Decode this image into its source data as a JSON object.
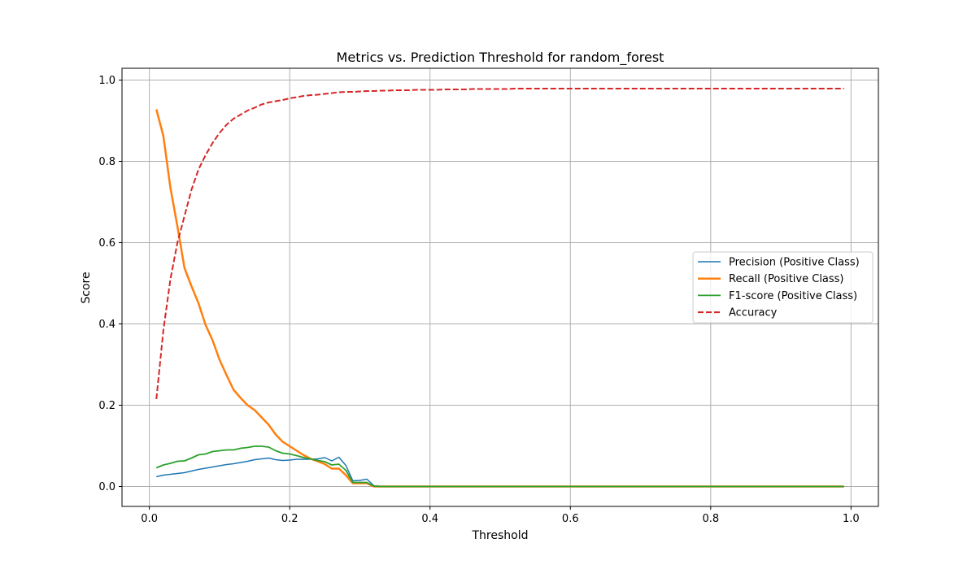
{
  "chart_data": {
    "type": "line",
    "title": "Metrics vs. Prediction Threshold for random_forest",
    "xlabel": "Threshold",
    "ylabel": "Score",
    "xlim": [
      -0.039,
      1.039
    ],
    "ylim": [
      -0.049,
      1.029
    ],
    "xticks": [
      0.0,
      0.2,
      0.4,
      0.6,
      0.8,
      1.0
    ],
    "xtick_labels": [
      "0.0",
      "0.2",
      "0.4",
      "0.6",
      "0.8",
      "1.0"
    ],
    "yticks": [
      0.0,
      0.2,
      0.4,
      0.6,
      0.8,
      1.0
    ],
    "ytick_labels": [
      "0.0",
      "0.2",
      "0.4",
      "0.6",
      "0.8",
      "1.0"
    ],
    "grid": true,
    "legend_position": "center-right",
    "x": [
      0.01,
      0.02,
      0.03,
      0.04,
      0.05,
      0.06,
      0.07,
      0.08,
      0.09,
      0.1,
      0.11,
      0.12,
      0.13,
      0.14,
      0.15,
      0.16,
      0.17,
      0.18,
      0.19,
      0.2,
      0.21,
      0.22,
      0.23,
      0.24,
      0.25,
      0.26,
      0.27,
      0.28,
      0.29,
      0.3,
      0.31,
      0.32,
      0.33,
      0.34,
      0.35,
      0.36,
      0.37,
      0.38,
      0.39,
      0.4,
      0.41,
      0.42,
      0.43,
      0.44,
      0.45,
      0.46,
      0.47,
      0.48,
      0.49,
      0.5,
      0.51,
      0.52,
      0.53,
      0.54,
      0.55,
      0.56,
      0.57,
      0.58,
      0.59,
      0.6,
      0.61,
      0.62,
      0.63,
      0.64,
      0.65,
      0.66,
      0.67,
      0.68,
      0.69,
      0.7,
      0.71,
      0.72,
      0.73,
      0.74,
      0.75,
      0.76,
      0.77,
      0.78,
      0.79,
      0.8,
      0.81,
      0.82,
      0.83,
      0.84,
      0.85,
      0.86,
      0.87,
      0.88,
      0.89,
      0.9,
      0.91,
      0.92,
      0.93,
      0.94,
      0.95,
      0.96,
      0.97,
      0.98,
      0.99
    ],
    "series": [
      {
        "name": "Precision (Positive Class)",
        "color": "#1f77b4",
        "style": "solid",
        "width": 1.5,
        "values": [
          0.024,
          0.028,
          0.03,
          0.032,
          0.034,
          0.038,
          0.042,
          0.045,
          0.048,
          0.051,
          0.054,
          0.056,
          0.059,
          0.062,
          0.066,
          0.068,
          0.07,
          0.066,
          0.064,
          0.065,
          0.067,
          0.067,
          0.067,
          0.068,
          0.071,
          0.063,
          0.072,
          0.052,
          0.014,
          0.015,
          0.018,
          0.002,
          0,
          0,
          0,
          0,
          0,
          0,
          0,
          0,
          0,
          0,
          0,
          0,
          0,
          0,
          0,
          0,
          0,
          0,
          0,
          0,
          0,
          0,
          0,
          0,
          0,
          0,
          0,
          0,
          0,
          0,
          0,
          0,
          0,
          0,
          0,
          0,
          0,
          0,
          0,
          0,
          0,
          0,
          0,
          0,
          0,
          0,
          0,
          0,
          0,
          0,
          0,
          0,
          0,
          0,
          0,
          0,
          0,
          0,
          0,
          0,
          0,
          0,
          0,
          0,
          0,
          0,
          0
        ]
      },
      {
        "name": "Recall (Positive Class)",
        "color": "#ff7f0e",
        "style": "solid",
        "width": 2.5,
        "values": [
          0.928,
          0.862,
          0.735,
          0.64,
          0.538,
          0.493,
          0.451,
          0.398,
          0.36,
          0.312,
          0.274,
          0.238,
          0.218,
          0.2,
          0.188,
          0.17,
          0.152,
          0.128,
          0.11,
          0.099,
          0.088,
          0.077,
          0.068,
          0.062,
          0.055,
          0.044,
          0.044,
          0.028,
          0.008,
          0.008,
          0.008,
          0,
          0,
          0,
          0,
          0,
          0,
          0,
          0,
          0,
          0,
          0,
          0,
          0,
          0,
          0,
          0,
          0,
          0,
          0,
          0,
          0,
          0,
          0,
          0,
          0,
          0,
          0,
          0,
          0,
          0,
          0,
          0,
          0,
          0,
          0,
          0,
          0,
          0,
          0,
          0,
          0,
          0,
          0,
          0,
          0,
          0,
          0,
          0,
          0,
          0,
          0,
          0,
          0,
          0,
          0,
          0,
          0,
          0,
          0,
          0,
          0,
          0,
          0,
          0,
          0,
          0,
          0,
          0
        ]
      },
      {
        "name": "F1-score (Positive Class)",
        "color": "#2ca02c",
        "style": "solid",
        "width": 1.8,
        "values": [
          0.046,
          0.053,
          0.057,
          0.062,
          0.063,
          0.07,
          0.078,
          0.08,
          0.086,
          0.088,
          0.09,
          0.09,
          0.094,
          0.096,
          0.099,
          0.099,
          0.097,
          0.088,
          0.082,
          0.08,
          0.076,
          0.071,
          0.068,
          0.064,
          0.061,
          0.053,
          0.055,
          0.04,
          0.01,
          0.01,
          0.01,
          0.001,
          0,
          0,
          0,
          0,
          0,
          0,
          0,
          0,
          0,
          0,
          0,
          0,
          0,
          0,
          0,
          0,
          0,
          0,
          0,
          0,
          0,
          0,
          0,
          0,
          0,
          0,
          0,
          0,
          0,
          0,
          0,
          0,
          0,
          0,
          0,
          0,
          0,
          0,
          0,
          0,
          0,
          0,
          0,
          0,
          0,
          0,
          0,
          0,
          0,
          0,
          0,
          0,
          0,
          0,
          0,
          0,
          0,
          0,
          0,
          0,
          0,
          0,
          0,
          0,
          0,
          0,
          0
        ]
      },
      {
        "name": "Accuracy",
        "color": "#d62728",
        "style": "dashed",
        "width": 2,
        "values": [
          0.215,
          0.385,
          0.51,
          0.6,
          0.665,
          0.73,
          0.78,
          0.815,
          0.845,
          0.87,
          0.89,
          0.905,
          0.915,
          0.925,
          0.932,
          0.94,
          0.945,
          0.948,
          0.951,
          0.955,
          0.958,
          0.961,
          0.963,
          0.964,
          0.966,
          0.968,
          0.97,
          0.971,
          0.971,
          0.972,
          0.973,
          0.973,
          0.974,
          0.974,
          0.975,
          0.975,
          0.975,
          0.976,
          0.976,
          0.976,
          0.976,
          0.977,
          0.977,
          0.977,
          0.977,
          0.978,
          0.978,
          0.978,
          0.978,
          0.978,
          0.978,
          0.979,
          0.979,
          0.979,
          0.979,
          0.979,
          0.979,
          0.979,
          0.979,
          0.979,
          0.979,
          0.979,
          0.979,
          0.979,
          0.979,
          0.979,
          0.979,
          0.979,
          0.979,
          0.979,
          0.979,
          0.979,
          0.979,
          0.979,
          0.979,
          0.979,
          0.979,
          0.979,
          0.979,
          0.979,
          0.979,
          0.979,
          0.979,
          0.979,
          0.979,
          0.979,
          0.979,
          0.979,
          0.979,
          0.979,
          0.979,
          0.979,
          0.979,
          0.979,
          0.979,
          0.979,
          0.979,
          0.979,
          0.979
        ]
      }
    ]
  }
}
